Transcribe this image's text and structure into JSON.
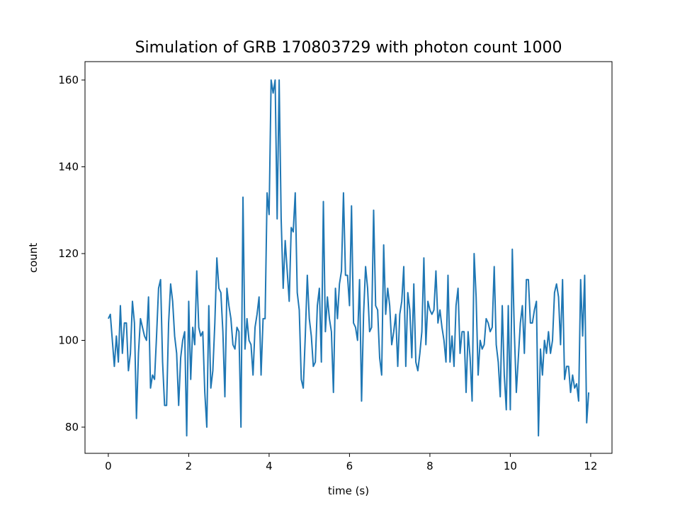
{
  "chart_data": {
    "type": "line",
    "title": "Simulation of GRB 170803729 with photon count 1000",
    "xlabel": "time (s)",
    "ylabel": "count",
    "xlim": [
      -0.58,
      12.53
    ],
    "ylim": [
      73.96,
      164.24
    ],
    "xticks": [
      0,
      2,
      4,
      6,
      8,
      10,
      12
    ],
    "yticks": [
      80,
      100,
      120,
      140,
      160
    ],
    "grid": false,
    "series": [
      {
        "color": "#1f77b4",
        "x": [
          0,
          0.05,
          0.1,
          0.15,
          0.2,
          0.25,
          0.3,
          0.35,
          0.4,
          0.45,
          0.5,
          0.55,
          0.6,
          0.65,
          0.7,
          0.75,
          0.8,
          0.85,
          0.9,
          0.95,
          1,
          1.05,
          1.1,
          1.15,
          1.2,
          1.25,
          1.3,
          1.35,
          1.4,
          1.45,
          1.5,
          1.55,
          1.6,
          1.65,
          1.7,
          1.75,
          1.8,
          1.85,
          1.9,
          1.95,
          2,
          2.05,
          2.1,
          2.15,
          2.2,
          2.25,
          2.3,
          2.35,
          2.4,
          2.45,
          2.5,
          2.55,
          2.6,
          2.65,
          2.7,
          2.75,
          2.8,
          2.85,
          2.9,
          2.95,
          3,
          3.05,
          3.1,
          3.15,
          3.2,
          3.25,
          3.3,
          3.35,
          3.4,
          3.45,
          3.5,
          3.55,
          3.6,
          3.65,
          3.7,
          3.75,
          3.8,
          3.85,
          3.9,
          3.95,
          4,
          4.05,
          4.1,
          4.15,
          4.2,
          4.25,
          4.3,
          4.35,
          4.4,
          4.45,
          4.5,
          4.55,
          4.6,
          4.65,
          4.7,
          4.75,
          4.8,
          4.85,
          4.9,
          4.95,
          5,
          5.05,
          5.1,
          5.15,
          5.2,
          5.25,
          5.3,
          5.35,
          5.4,
          5.45,
          5.5,
          5.55,
          5.6,
          5.65,
          5.7,
          5.75,
          5.8,
          5.85,
          5.9,
          5.95,
          6,
          6.05,
          6.1,
          6.15,
          6.2,
          6.25,
          6.3,
          6.35,
          6.4,
          6.45,
          6.5,
          6.55,
          6.6,
          6.65,
          6.7,
          6.75,
          6.8,
          6.85,
          6.9,
          6.95,
          7,
          7.05,
          7.1,
          7.15,
          7.2,
          7.25,
          7.3,
          7.35,
          7.4,
          7.45,
          7.5,
          7.55,
          7.6,
          7.65,
          7.7,
          7.75,
          7.8,
          7.85,
          7.9,
          7.95,
          8,
          8.05,
          8.1,
          8.15,
          8.2,
          8.25,
          8.3,
          8.35,
          8.4,
          8.45,
          8.5,
          8.55,
          8.6,
          8.65,
          8.7,
          8.75,
          8.8,
          8.85,
          8.9,
          8.95,
          9,
          9.05,
          9.1,
          9.15,
          9.2,
          9.25,
          9.3,
          9.35,
          9.4,
          9.45,
          9.5,
          9.55,
          9.6,
          9.65,
          9.7,
          9.75,
          9.8,
          9.85,
          9.9,
          9.95,
          10,
          10.05,
          10.1,
          10.15,
          10.2,
          10.25,
          10.3,
          10.35,
          10.4,
          10.45,
          10.5,
          10.55,
          10.6,
          10.65,
          10.7,
          10.75,
          10.8,
          10.85,
          10.9,
          10.95,
          11,
          11.05,
          11.1,
          11.15,
          11.2,
          11.25,
          11.3,
          11.35,
          11.4,
          11.45,
          11.5,
          11.55,
          11.6,
          11.65,
          11.7,
          11.75,
          11.8,
          11.85,
          11.9,
          11.95
        ],
        "values": [
          105,
          106,
          100,
          94,
          101,
          95,
          108,
          97,
          104,
          104,
          93,
          97,
          109,
          104,
          82,
          97,
          105,
          103,
          101,
          100,
          110,
          89,
          92,
          91,
          101,
          112,
          114,
          95,
          85,
          85,
          104,
          113,
          109,
          101,
          97,
          85,
          96,
          100,
          102,
          78,
          109,
          91,
          103,
          99,
          116,
          103,
          101,
          102,
          88,
          80,
          108,
          89,
          93,
          104,
          119,
          112,
          111,
          102,
          87,
          112,
          108,
          105,
          99,
          98,
          103,
          102,
          80,
          133,
          98,
          105,
          100,
          99,
          92,
          103,
          106,
          110,
          92,
          105,
          105,
          134,
          129,
          160,
          157,
          160,
          128,
          160,
          128,
          112,
          123,
          116,
          109,
          126,
          125,
          134,
          111,
          107,
          91,
          89,
          101,
          115,
          105,
          101,
          94,
          95,
          108,
          112,
          95,
          132,
          102,
          110,
          105,
          102,
          88,
          112,
          105,
          113,
          116,
          134,
          115,
          115,
          108,
          131,
          104,
          103,
          100,
          114,
          86,
          106,
          117,
          112,
          102,
          103,
          130,
          108,
          107,
          96,
          92,
          122,
          106,
          112,
          108,
          99,
          102,
          106,
          94,
          106,
          109,
          117,
          94,
          111,
          107,
          96,
          113,
          95,
          93,
          97,
          102,
          119,
          99,
          109,
          107,
          106,
          107,
          116,
          104,
          107,
          103,
          100,
          95,
          115,
          95,
          101,
          94,
          108,
          112,
          97,
          102,
          102,
          88,
          102,
          96,
          86,
          120,
          110,
          92,
          100,
          98,
          99,
          105,
          104,
          102,
          103,
          117,
          99,
          95,
          87,
          108,
          92,
          84,
          108,
          84,
          121,
          102,
          88,
          96,
          104,
          108,
          97,
          114,
          114,
          104,
          104,
          107,
          109,
          78,
          98,
          92,
          100,
          97,
          102,
          97,
          100,
          111,
          113,
          110,
          99,
          114,
          91,
          94,
          94,
          88,
          92,
          89,
          90,
          86,
          114,
          101,
          115,
          81,
          88
        ]
      }
    ]
  }
}
